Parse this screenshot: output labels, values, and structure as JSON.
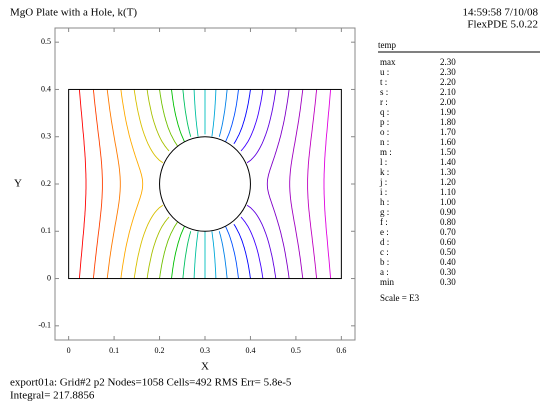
{
  "chart_data": {
    "type": "contour",
    "title": "MgO Plate with a Hole, k(T)",
    "timestamp": "14:59:58 7/10/08",
    "software": "FlexPDE 5.0.22",
    "xlabel": "X",
    "ylabel": "Y",
    "xlim": [
      -0.03,
      0.63
    ],
    "ylim": [
      -0.13,
      0.53
    ],
    "xticks": [
      0,
      0.1,
      0.2,
      0.3,
      0.4,
      0.5,
      0.6
    ],
    "yticks": [
      -0.1,
      0,
      0.1,
      0.2,
      0.3,
      0.4,
      0.5
    ],
    "legend_title": "temp",
    "max": {
      "name": "max",
      "value": 2.3,
      "label": "2.30"
    },
    "levels": [
      {
        "name": "u :",
        "color": "#ff0000",
        "value": 2.3,
        "label": "2.30"
      },
      {
        "name": "t :",
        "color": "#ff4000",
        "value": 2.2,
        "label": "2.20"
      },
      {
        "name": "s :",
        "color": "#ff7a00",
        "value": 2.1,
        "label": "2.10"
      },
      {
        "name": "r :",
        "color": "#ffaa00",
        "value": 2.0,
        "label": "2.00"
      },
      {
        "name": "q :",
        "color": "#d8c000",
        "value": 1.9,
        "label": "1.90"
      },
      {
        "name": "p :",
        "color": "#a8c000",
        "value": 1.8,
        "label": "1.80"
      },
      {
        "name": "o :",
        "color": "#70c000",
        "value": 1.7,
        "label": "1.70"
      },
      {
        "name": "n :",
        "color": "#00c000",
        "value": 1.6,
        "label": "1.60"
      },
      {
        "name": "m :",
        "color": "#00c060",
        "value": 1.5,
        "label": "1.50"
      },
      {
        "name": "l :",
        "color": "#00c0a0",
        "value": 1.4,
        "label": "1.40"
      },
      {
        "name": "k :",
        "color": "#00c0c0",
        "value": 1.3,
        "label": "1.30"
      },
      {
        "name": "j :",
        "color": "#00a8d8",
        "value": 1.2,
        "label": "1.20"
      },
      {
        "name": "i :",
        "color": "#0080e8",
        "value": 1.1,
        "label": "1.10"
      },
      {
        "name": "h :",
        "color": "#0050ff",
        "value": 1.0,
        "label": "1.00"
      },
      {
        "name": "g :",
        "color": "#0000ff",
        "value": 0.9,
        "label": "0.90"
      },
      {
        "name": "f :",
        "color": "#4000ff",
        "value": 0.8,
        "label": "0.80"
      },
      {
        "name": "e :",
        "color": "#6000e0",
        "value": 0.7,
        "label": "0.70"
      },
      {
        "name": "d :",
        "color": "#8000c8",
        "value": 0.6,
        "label": "0.60"
      },
      {
        "name": "c :",
        "color": "#a000c0",
        "value": 0.5,
        "label": "0.50"
      },
      {
        "name": "b :",
        "color": "#c000c0",
        "value": 0.4,
        "label": "0.40"
      },
      {
        "name": "a :",
        "color": "#e000e0",
        "value": 0.3,
        "label": "0.30"
      }
    ],
    "min": {
      "name": "min",
      "value": 0.3,
      "label": "0.30"
    },
    "scale_note": "Scale = E3",
    "footer_line1": "export01a:  Grid#2  p2  Nodes=1058 Cells=492 RMS Err= 5.8e-5",
    "footer_line2": "Integral=   217.8856"
  }
}
